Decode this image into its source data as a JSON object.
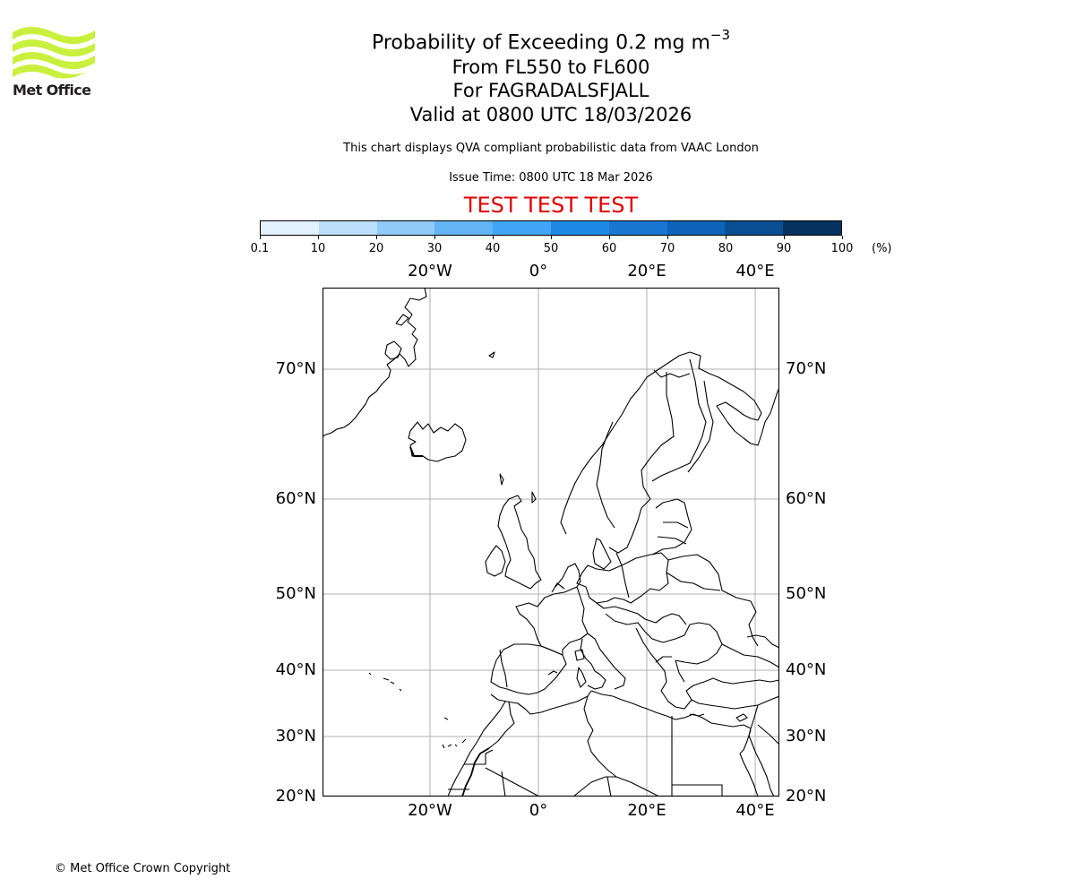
{
  "logo": {
    "name": "Met Office",
    "color": "#c8f03c",
    "text_color": "#231f20"
  },
  "header": {
    "title_main": "Probability of Exceeding 0.2 mg m",
    "title_superscript": "−3",
    "level_range": "From FL550 to FL600",
    "volcano": "For FAGRADALSFJALL",
    "valid_time": "Valid at 0800 UTC 18/03/2026",
    "description": "This chart displays QVA compliant probabilistic data from VAAC London",
    "issue_time": "Issue Time: 0800 UTC 18 Mar 2026",
    "test_banner": "TEST TEST TEST",
    "test_banner_color": "#e00000"
  },
  "colorbar": {
    "unit": "(%)",
    "tick_labels": [
      "0.1",
      "10",
      "20",
      "30",
      "40",
      "50",
      "60",
      "70",
      "80",
      "90",
      "100"
    ],
    "colors": [
      "#e3f2fe",
      "#bbdefb",
      "#90caf9",
      "#64b5f6",
      "#42a5f5",
      "#1e88e5",
      "#1976d2",
      "#0d63b8",
      "#0a4f92",
      "#063260"
    ]
  },
  "map": {
    "projection": "PlateCarree",
    "extent": {
      "lon_min": -40,
      "lon_max": 44,
      "lat_min": 20,
      "lat_max": 75
    },
    "lon_labels_top": [
      "20°W",
      "0°",
      "20°E",
      "40°E"
    ],
    "lon_labels_bottom": [
      "20°W",
      "0°",
      "20°E",
      "40°E"
    ],
    "lat_labels_left": [
      "70°N",
      "60°N",
      "50°N",
      "40°N",
      "30°N",
      "20°N"
    ],
    "lat_labels_right": [
      "70°N",
      "60°N",
      "50°N",
      "40°N",
      "30°N",
      "20°N"
    ],
    "gridline_color": "#b0b0b0",
    "coastline_color": "#000000",
    "ash_probability_shading": "none visible"
  },
  "footer": {
    "copyright": "© Met Office Crown Copyright"
  }
}
